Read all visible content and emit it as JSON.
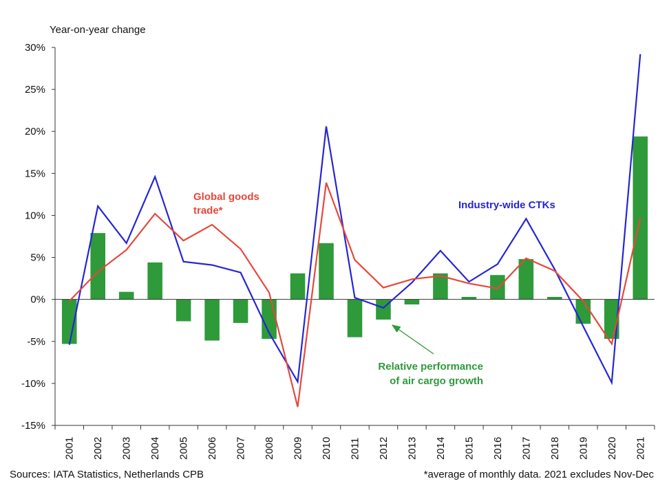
{
  "chart_data": {
    "type": "bar",
    "ylabel": "Year-on-year change",
    "xlabel": "",
    "ylim": [
      -15,
      30
    ],
    "yticks": [
      "30%",
      "25%",
      "20%",
      "15%",
      "10%",
      "5%",
      "0%",
      "-5%",
      "-10%",
      "-15%"
    ],
    "ytick_values": [
      30,
      25,
      20,
      15,
      10,
      5,
      0,
      -5,
      -10,
      -15
    ],
    "categories": [
      "2001",
      "2002",
      "2003",
      "2004",
      "2005",
      "2006",
      "2007",
      "2008",
      "2009",
      "2010",
      "2011",
      "2012",
      "2013",
      "2014",
      "2015",
      "2016",
      "2017",
      "2018",
      "2019",
      "2020",
      "2021"
    ],
    "grid": false,
    "series": [
      {
        "name": "Relative performance of air cargo growth",
        "kind": "bar",
        "color": "#2e9a3a",
        "values": [
          -5.3,
          7.9,
          0.9,
          4.4,
          -2.6,
          -4.9,
          -2.8,
          -4.7,
          3.1,
          6.7,
          -4.5,
          -2.4,
          -0.6,
          3.1,
          0.3,
          2.9,
          4.8,
          0.3,
          -2.9,
          -4.7,
          19.4
        ]
      },
      {
        "name": "Industry-wide CTKs",
        "kind": "line",
        "color": "#2525d6",
        "values": [
          -5.4,
          11.1,
          6.7,
          14.6,
          4.5,
          4.1,
          3.2,
          -4.0,
          -9.8,
          20.6,
          0.2,
          -1.0,
          2.0,
          5.8,
          2.1,
          4.2,
          9.6,
          3.6,
          -3.2,
          -9.9,
          29.2
        ]
      },
      {
        "name": "Global goods trade*",
        "kind": "line",
        "color": "#e5483b",
        "values": [
          -0.2,
          3.3,
          5.9,
          10.2,
          7.0,
          8.9,
          6.0,
          0.8,
          -12.8,
          13.9,
          4.7,
          1.4,
          2.4,
          2.8,
          1.9,
          1.3,
          4.9,
          3.4,
          -0.2,
          -5.3,
          9.7
        ]
      }
    ],
    "annotations": {
      "global_trade": [
        "Global goods",
        "trade*"
      ],
      "ctks": "Industry-wide CTKs",
      "relative": [
        "Relative performance",
        "of air cargo growth"
      ]
    }
  },
  "footer": {
    "source": "Sources: IATA Statistics, Netherlands CPB",
    "note": "*average of monthly data. 2021 excludes Nov-Dec"
  }
}
